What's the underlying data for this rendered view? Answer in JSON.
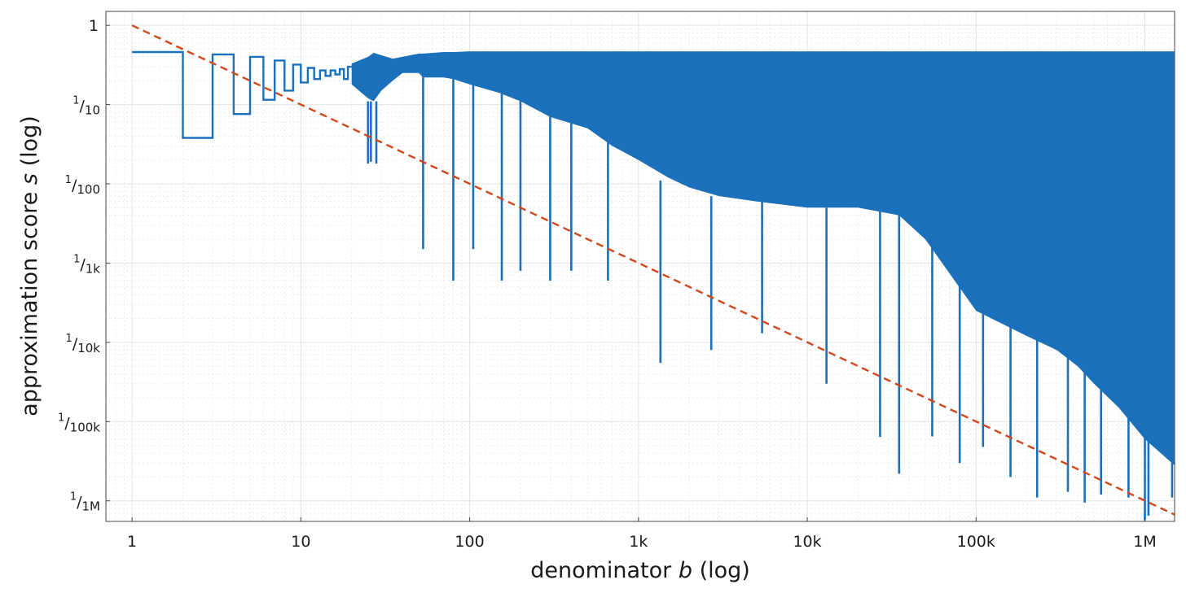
{
  "chart_data": {
    "type": "line",
    "title": "",
    "xlabel_text": "denominator ",
    "xlabel_var": "b",
    "xlabel_suffix": " (log)",
    "ylabel_text": "approximation score ",
    "ylabel_var": "s",
    "ylabel_suffix": " (log)",
    "xscale": "log",
    "yscale": "log",
    "xlim": [
      0.7,
      1500000
    ],
    "ylim": [
      5.5e-07,
      1.5
    ],
    "grid": true,
    "x_ticks": [
      {
        "value": 1,
        "label": "1"
      },
      {
        "value": 10,
        "label": "10"
      },
      {
        "value": 100,
        "label": "100"
      },
      {
        "value": 1000,
        "label": "1k"
      },
      {
        "value": 10000,
        "label": "10k"
      },
      {
        "value": 100000,
        "label": "100k"
      },
      {
        "value": 1000000,
        "label": "1M"
      }
    ],
    "y_ticks": [
      {
        "value": 1,
        "num": "1",
        "den": "",
        "plain": "1"
      },
      {
        "value": 0.1,
        "num": "1",
        "den": "10",
        "plain": ""
      },
      {
        "value": 0.01,
        "num": "1",
        "den": "100",
        "plain": ""
      },
      {
        "value": 0.001,
        "num": "1",
        "den": "1k",
        "plain": ""
      },
      {
        "value": 0.0001,
        "num": "1",
        "den": "10k",
        "plain": ""
      },
      {
        "value": 1e-05,
        "num": "1",
        "den": "100k",
        "plain": ""
      },
      {
        "value": 1e-06,
        "num": "1",
        "den": "1M",
        "plain": ""
      }
    ],
    "series": [
      {
        "style": "step",
        "color": "#1a70bb",
        "x": [
          1,
          2,
          3,
          4,
          5,
          6,
          7,
          8,
          9,
          10,
          11,
          12,
          13,
          14,
          15,
          16,
          17,
          18,
          19
        ],
        "y": [
          0.46,
          0.038,
          0.43,
          0.076,
          0.4,
          0.115,
          0.36,
          0.15,
          0.32,
          0.19,
          0.29,
          0.21,
          0.27,
          0.23,
          0.27,
          0.24,
          0.28,
          0.21,
          0.3
        ]
      },
      {
        "style": "envelope",
        "color": "#1a70bb",
        "x": [
          20,
          25,
          27,
          30,
          35,
          40,
          50,
          53,
          70,
          80,
          100,
          150,
          200,
          300,
          500,
          700,
          1000,
          1500,
          2000,
          3000,
          5000,
          10000,
          20000,
          35000,
          50000,
          100000,
          200000,
          300000,
          400000,
          500000,
          700000,
          1000000,
          1500000
        ],
        "y_top": [
          0.33,
          0.4,
          0.45,
          0.42,
          0.38,
          0.4,
          0.44,
          0.44,
          0.46,
          0.46,
          0.47,
          0.47,
          0.47,
          0.47,
          0.47,
          0.47,
          0.47,
          0.47,
          0.47,
          0.47,
          0.47,
          0.47,
          0.47,
          0.47,
          0.47,
          0.47,
          0.47,
          0.47,
          0.47,
          0.47,
          0.47,
          0.47,
          0.47
        ],
        "y_low": [
          0.18,
          0.12,
          0.11,
          0.15,
          0.2,
          0.25,
          0.25,
          0.22,
          0.22,
          0.21,
          0.18,
          0.14,
          0.11,
          0.07,
          0.05,
          0.03,
          0.02,
          0.012,
          0.009,
          0.007,
          0.006,
          0.005,
          0.005,
          0.004,
          0.002,
          0.00025,
          0.00012,
          8e-05,
          5e-05,
          3e-05,
          1.5e-05,
          6e-06,
          2.8e-06
        ]
      },
      {
        "style": "spikes",
        "color": "#1a70bb",
        "x": [
          25,
          26,
          28,
          53,
          80,
          105,
          155,
          200,
          300,
          400,
          660,
          1350,
          2700,
          5400,
          13000,
          27000,
          35000,
          55000,
          80000,
          110000,
          160000,
          230000,
          350000,
          440000,
          550000,
          800000,
          1000000,
          1050000,
          1450000
        ],
        "y_base": [
          0.11,
          0.11,
          0.11,
          0.24,
          0.22,
          0.2,
          0.15,
          0.12,
          0.08,
          0.06,
          0.035,
          0.011,
          0.007,
          0.006,
          0.005,
          0.005,
          0.0042,
          0.0035,
          0.0025,
          0.00025,
          0.00018,
          0.00012,
          7e-05,
          5e-05,
          4e-05,
          2e-05,
          8e-06,
          7e-06,
          3.5e-06
        ],
        "y_tip": [
          0.018,
          0.019,
          0.018,
          0.0015,
          0.0006,
          0.0015,
          0.0006,
          0.0008,
          0.0006,
          0.0008,
          0.0006,
          5.5e-05,
          8e-05,
          0.00013,
          3e-05,
          6.4e-06,
          2.2e-06,
          6.5e-06,
          3e-06,
          4.8e-06,
          2e-06,
          1.1e-06,
          1.3e-06,
          9.5e-07,
          1.2e-06,
          1.1e-06,
          5.7e-07,
          6.5e-07,
          1.1e-06
        ]
      },
      {
        "style": "dashed",
        "color": "#d2461a",
        "x": [
          1,
          1500000
        ],
        "y": [
          1,
          6.7e-07
        ]
      }
    ]
  }
}
